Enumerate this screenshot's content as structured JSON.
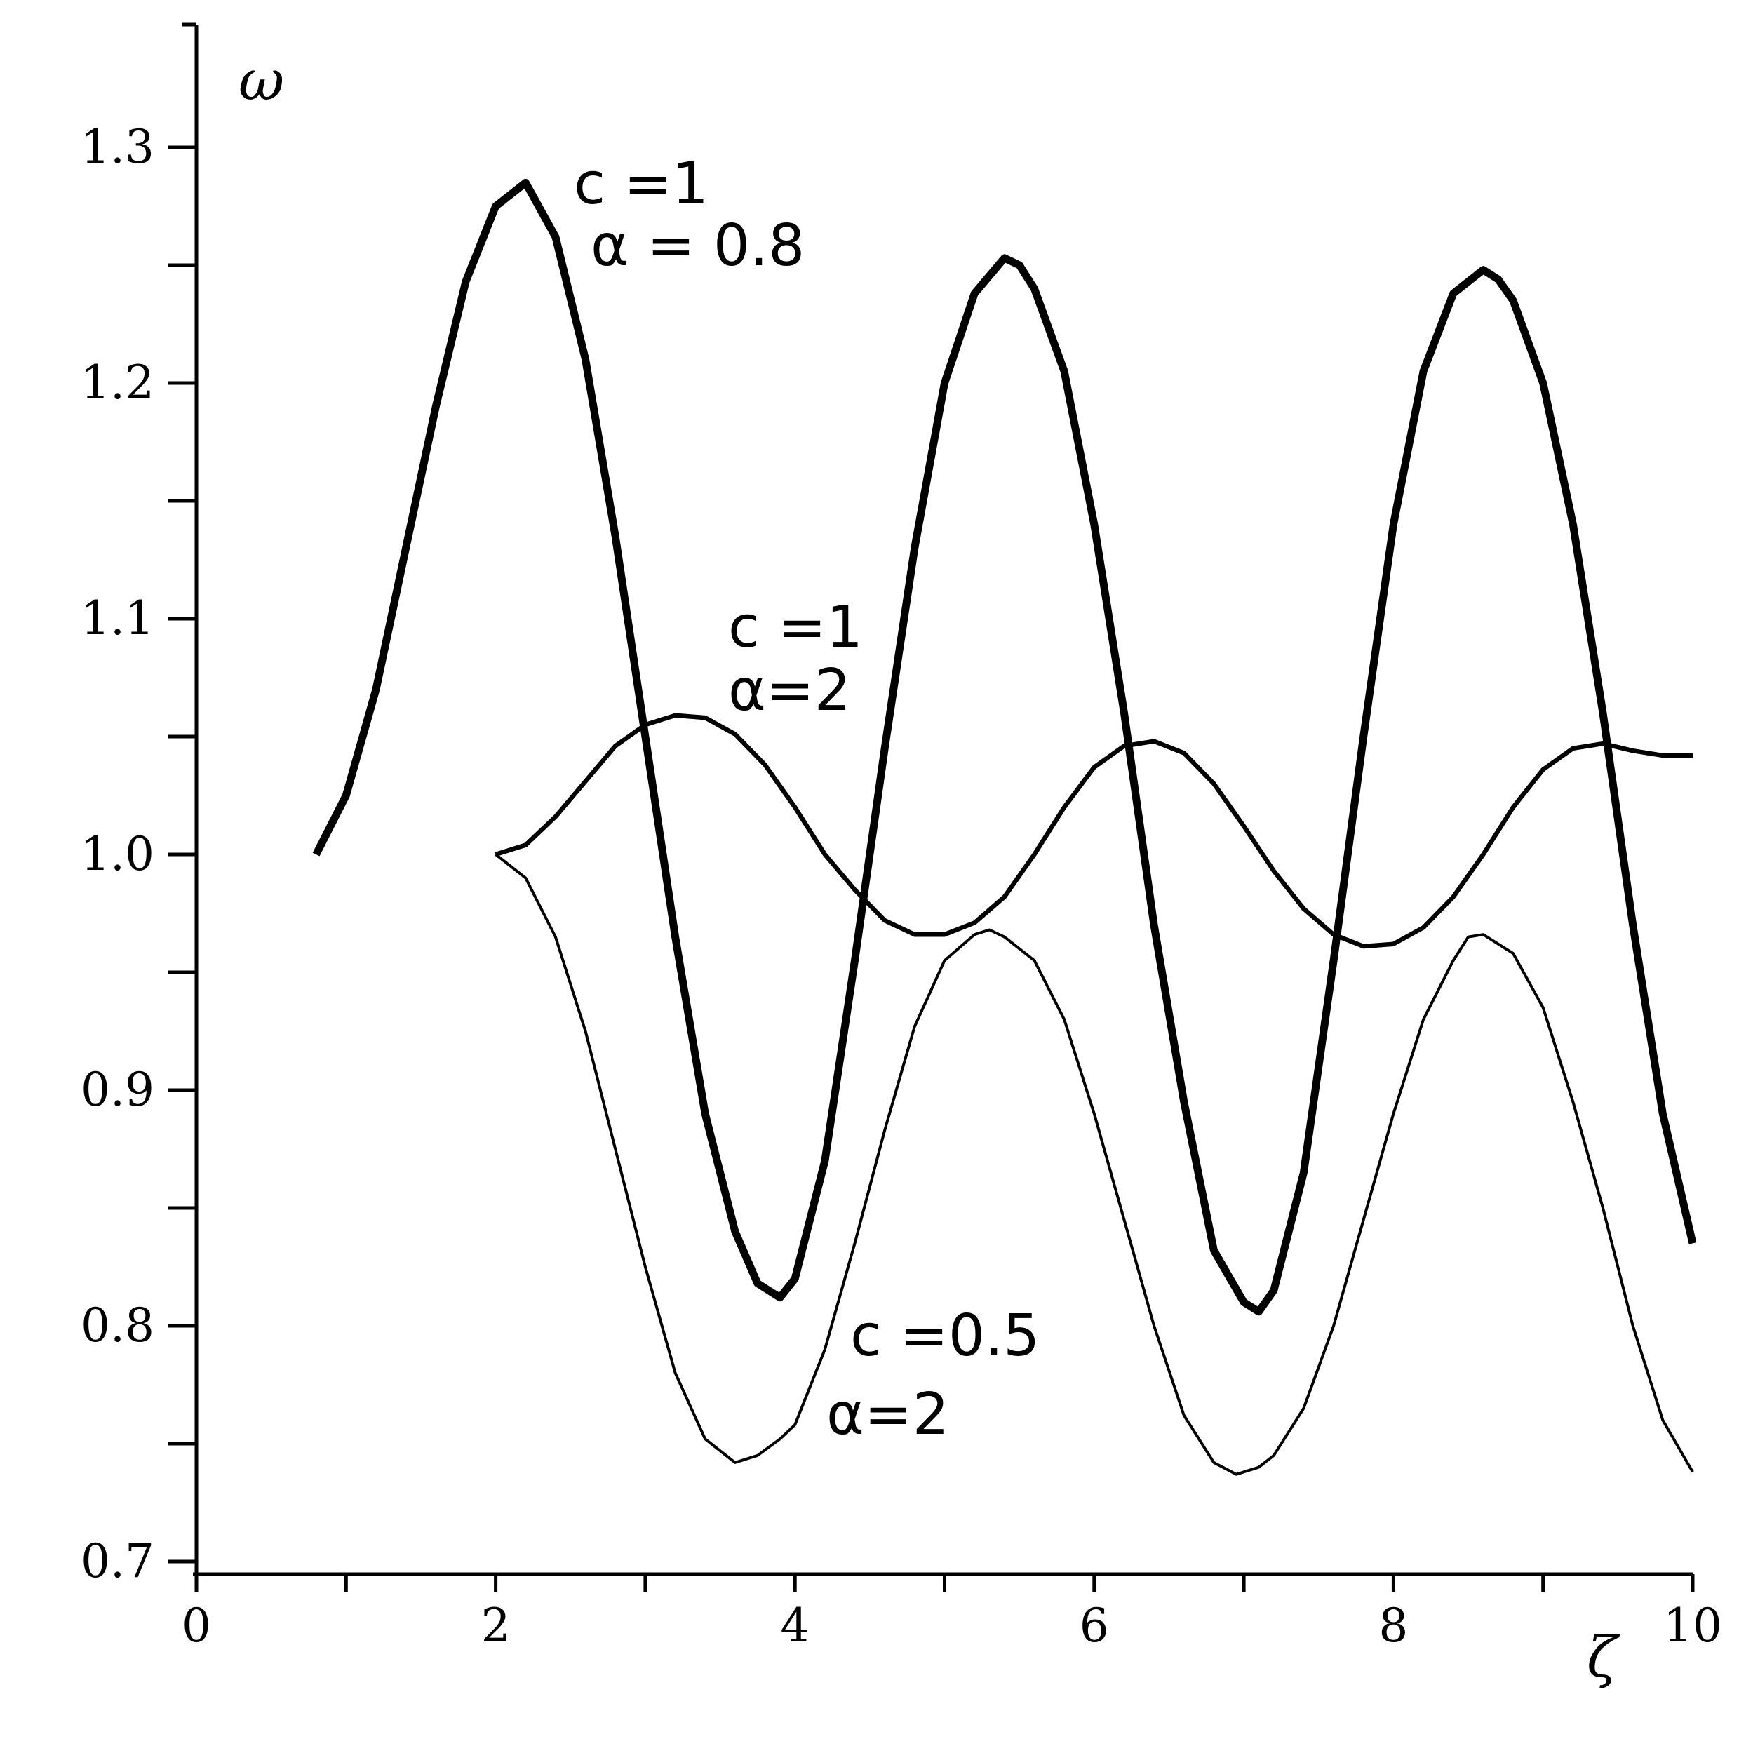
{
  "chart_data": {
    "type": "line",
    "xlabel": "ζ",
    "ylabel": "ω",
    "xlim": [
      0,
      10
    ],
    "ylim": [
      0.69,
      1.35
    ],
    "grid": false,
    "x_ticks": [
      0,
      2,
      4,
      6,
      8,
      10
    ],
    "x_tick_labels": [
      "0",
      "2",
      "4",
      "6",
      "8",
      "10"
    ],
    "y_ticks": [
      0.7,
      0.8,
      0.9,
      1.0,
      1.1,
      1.2,
      1.3
    ],
    "y_tick_labels": [
      "0.7",
      "0.8",
      "0.9",
      "1.0",
      "1.1",
      "1.2",
      "1.3"
    ],
    "series": [
      {
        "id": "c1-a08",
        "stroke": "thick",
        "x": [
          0.8,
          1.0,
          1.2,
          1.4,
          1.6,
          1.8,
          2.0,
          2.2,
          2.4,
          2.6,
          2.8,
          3.0,
          3.2,
          3.4,
          3.6,
          3.75,
          3.9,
          4.0,
          4.2,
          4.4,
          4.6,
          4.8,
          5.0,
          5.2,
          5.4,
          5.5,
          5.6,
          5.8,
          6.0,
          6.2,
          6.4,
          6.6,
          6.8,
          7.0,
          7.1,
          7.2,
          7.4,
          7.6,
          7.8,
          8.0,
          8.2,
          8.4,
          8.6,
          8.7,
          8.8,
          9.0,
          9.2,
          9.4,
          9.6,
          9.8,
          10.0
        ],
        "y": [
          1.0,
          1.025,
          1.07,
          1.13,
          1.19,
          1.243,
          1.275,
          1.285,
          1.262,
          1.21,
          1.135,
          1.05,
          0.965,
          0.89,
          0.84,
          0.818,
          0.812,
          0.82,
          0.87,
          0.955,
          1.045,
          1.13,
          1.2,
          1.238,
          1.253,
          1.25,
          1.24,
          1.205,
          1.14,
          1.06,
          0.97,
          0.895,
          0.832,
          0.81,
          0.806,
          0.815,
          0.865,
          0.955,
          1.05,
          1.14,
          1.205,
          1.238,
          1.248,
          1.244,
          1.235,
          1.2,
          1.14,
          1.06,
          0.97,
          0.89,
          0.835
        ]
      },
      {
        "id": "c1-a2",
        "stroke": "medium",
        "x": [
          2.0,
          2.2,
          2.4,
          2.6,
          2.8,
          3.0,
          3.2,
          3.4,
          3.6,
          3.8,
          4.0,
          4.2,
          4.4,
          4.6,
          4.8,
          5.0,
          5.2,
          5.4,
          5.6,
          5.8,
          6.0,
          6.2,
          6.4,
          6.6,
          6.8,
          7.0,
          7.2,
          7.4,
          7.6,
          7.8,
          8.0,
          8.2,
          8.4,
          8.6,
          8.8,
          9.0,
          9.2,
          9.4,
          9.6,
          9.8,
          10.0
        ],
        "y": [
          1.0,
          1.004,
          1.016,
          1.031,
          1.046,
          1.055,
          1.059,
          1.058,
          1.051,
          1.038,
          1.02,
          1.0,
          0.985,
          0.972,
          0.966,
          0.966,
          0.971,
          0.982,
          1.0,
          1.02,
          1.037,
          1.046,
          1.048,
          1.043,
          1.03,
          1.012,
          0.993,
          0.977,
          0.966,
          0.961,
          0.962,
          0.969,
          0.982,
          1.0,
          1.02,
          1.036,
          1.045,
          1.047,
          1.044,
          1.042,
          1.042
        ]
      },
      {
        "id": "c05-a2",
        "stroke": "thin",
        "x": [
          2.0,
          2.2,
          2.4,
          2.6,
          2.8,
          3.0,
          3.2,
          3.4,
          3.6,
          3.75,
          3.9,
          4.0,
          4.2,
          4.4,
          4.6,
          4.8,
          5.0,
          5.2,
          5.3,
          5.4,
          5.6,
          5.8,
          6.0,
          6.2,
          6.4,
          6.6,
          6.8,
          6.95,
          7.1,
          7.2,
          7.4,
          7.6,
          7.8,
          8.0,
          8.2,
          8.4,
          8.5,
          8.6,
          8.8,
          9.0,
          9.2,
          9.4,
          9.6,
          9.8,
          10.0
        ],
        "y": [
          1.0,
          0.99,
          0.965,
          0.925,
          0.875,
          0.825,
          0.78,
          0.752,
          0.742,
          0.745,
          0.752,
          0.758,
          0.79,
          0.835,
          0.883,
          0.927,
          0.955,
          0.966,
          0.968,
          0.965,
          0.955,
          0.93,
          0.89,
          0.845,
          0.8,
          0.762,
          0.742,
          0.737,
          0.74,
          0.745,
          0.765,
          0.8,
          0.845,
          0.89,
          0.93,
          0.955,
          0.965,
          0.966,
          0.958,
          0.935,
          0.895,
          0.85,
          0.8,
          0.76,
          0.738
        ]
      }
    ],
    "annotations": [
      {
        "id": "c1-a08",
        "lines": [
          "c =1",
          "α = 0.8"
        ]
      },
      {
        "id": "c1-a2",
        "lines": [
          "c =1",
          "α=2"
        ]
      },
      {
        "id": "c05-a2",
        "lines": [
          "c =0.5",
          "α=2"
        ]
      }
    ]
  }
}
